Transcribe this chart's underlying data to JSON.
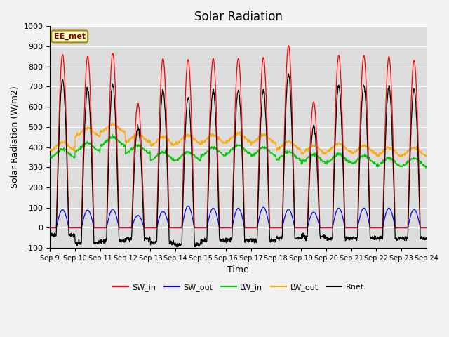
{
  "title": "Solar Radiation",
  "ylabel": "Solar Radiation (W/m2)",
  "xlabel": "Time",
  "ylim": [
    -100,
    1000
  ],
  "annotation": "EE_met",
  "x_tick_labels": [
    "Sep 9",
    "Sep 10",
    "Sep 11",
    "Sep 12",
    "Sep 13",
    "Sep 14",
    "Sep 15",
    "Sep 16",
    "Sep 17",
    "Sep 18",
    "Sep 19",
    "Sep 20",
    "Sep 21",
    "Sep 22",
    "Sep 23",
    "Sep 24"
  ],
  "n_days": 15,
  "colors": {
    "SW_in": "#ff0000",
    "SW_out": "#0000ff",
    "LW_in": "#00cc00",
    "LW_out": "#ffaa00",
    "Rnet": "#000000"
  },
  "background_color": "#dcdcdc",
  "grid_color": "#ffffff",
  "fig_background": "#f2f2f2",
  "title_fontsize": 12,
  "label_fontsize": 9,
  "tick_fontsize": 8,
  "sw_in_peaks": [
    860,
    850,
    865,
    620,
    840,
    835,
    840,
    840,
    845,
    905,
    625,
    855,
    855,
    850,
    830
  ],
  "sw_out_peaks": [
    90,
    88,
    92,
    62,
    82,
    108,
    98,
    98,
    102,
    92,
    78,
    98,
    98,
    98,
    92
  ],
  "lw_in_base": [
    370,
    400,
    430,
    390,
    355,
    355,
    378,
    388,
    378,
    358,
    345,
    345,
    338,
    325,
    325
  ],
  "lw_out_base": [
    405,
    475,
    495,
    445,
    430,
    440,
    440,
    448,
    440,
    408,
    388,
    398,
    388,
    378,
    378
  ],
  "night_lw_diff": -50,
  "lw_amplitude": 20,
  "lw_noise": 4,
  "points_per_day": 96
}
